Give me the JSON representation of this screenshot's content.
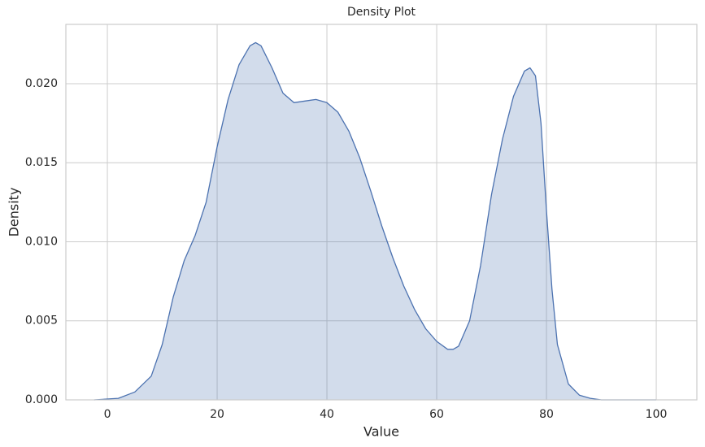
{
  "chart_data": {
    "type": "density",
    "title": "Density Plot",
    "xlabel": "Value",
    "ylabel": "Density",
    "x": [
      -2.4,
      2,
      5,
      8,
      10,
      12,
      14,
      16,
      18,
      20,
      22,
      24,
      26,
      27,
      28,
      30,
      32,
      34,
      36,
      38,
      40,
      42,
      44,
      46,
      48,
      50,
      52,
      54,
      56,
      58,
      60,
      62,
      63,
      64,
      66,
      68,
      70,
      72,
      74,
      76,
      77,
      78,
      79,
      80,
      81,
      82,
      84,
      86,
      88,
      90,
      100
    ],
    "values": [
      0,
      0.0001,
      0.0005,
      0.0015,
      0.0035,
      0.0065,
      0.0088,
      0.0104,
      0.0125,
      0.016,
      0.019,
      0.0212,
      0.0224,
      0.0226,
      0.0224,
      0.021,
      0.0194,
      0.0188,
      0.0189,
      0.019,
      0.0188,
      0.0182,
      0.017,
      0.0153,
      0.0132,
      0.011,
      0.009,
      0.0072,
      0.0057,
      0.0045,
      0.0037,
      0.0032,
      0.0032,
      0.0034,
      0.005,
      0.0085,
      0.013,
      0.0165,
      0.0192,
      0.0208,
      0.021,
      0.0205,
      0.0175,
      0.012,
      0.007,
      0.0035,
      0.001,
      0.0003,
      0.0001,
      0,
      0
    ],
    "color": "#4c72b0",
    "xlim": [
      -7.56,
      107.4
    ],
    "ylim": [
      0,
      0.02375
    ],
    "xticks": [
      0,
      20,
      40,
      60,
      80,
      100
    ],
    "yticks": [
      {
        "value": 0,
        "label": "0.000"
      },
      {
        "value": 0.005,
        "label": "0.005"
      },
      {
        "value": 0.01,
        "label": "0.010"
      },
      {
        "value": 0.015,
        "label": "0.015"
      },
      {
        "value": 0.02,
        "label": "0.020"
      }
    ],
    "grid": true
  }
}
